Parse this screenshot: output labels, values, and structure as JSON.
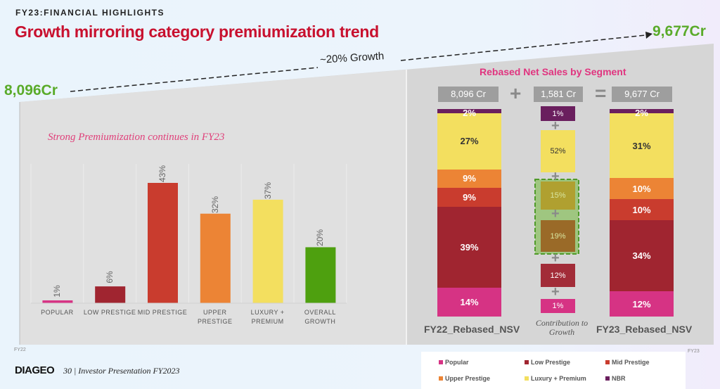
{
  "header": {
    "kicker": "FY23:FINANCIAL HIGHLIGHTS",
    "title": "Growth mirroring category premiumization trend"
  },
  "growth": {
    "start": "8,096Cr",
    "end": "9,677Cr",
    "label": "~20% Growth"
  },
  "colors": {
    "popular": "#d63384",
    "low_prestige": "#a02530",
    "mid_prestige": "#c93c2e",
    "upper_prestige": "#ec8435",
    "luxury_premium": "#f3df5f",
    "nbr": "#6a1f5e",
    "overall": "#4ea00f"
  },
  "chart_data": [
    {
      "type": "bar",
      "title": "Strong Premiumization continues in FY23",
      "categories": [
        "POPULAR",
        "LOW PRESTIGE",
        "MID PRESTIGE",
        "UPPER PRESTIGE",
        "LUXURY + PREMIUM",
        "OVERALL GROWTH"
      ],
      "values": [
        1,
        6,
        43,
        32,
        37,
        20
      ],
      "value_labels": [
        "1%",
        "6%",
        "43%",
        "32%",
        "37%",
        "20%"
      ],
      "ylim": [
        0,
        50
      ],
      "grid": "vertical separators"
    },
    {
      "type": "bar",
      "stacked": true,
      "title": "Rebased Net Sales by Segment",
      "categories": [
        "FY22_Rebased_NSV",
        "Contribution to Growth",
        "FY23_Rebased_NSV"
      ],
      "totals": [
        "8,096 Cr",
        "1,581 Cr",
        "9,677 Cr"
      ],
      "operators": [
        "+",
        "="
      ],
      "series": [
        {
          "name": "Popular",
          "values": [
            14,
            1,
            12
          ]
        },
        {
          "name": "Low Prestige",
          "values": [
            39,
            12,
            34
          ]
        },
        {
          "name": "Mid Prestige",
          "values": [
            9,
            19,
            10
          ]
        },
        {
          "name": "Upper Prestige",
          "values": [
            9,
            15,
            10
          ]
        },
        {
          "name": "Luxury + Premium",
          "values": [
            27,
            52,
            31
          ]
        },
        {
          "name": "NBR",
          "values": [
            2,
            1,
            2
          ]
        }
      ],
      "legend": "bottom"
    }
  ],
  "axis_notes": {
    "left": "FY22",
    "right": "FY23"
  },
  "footer": {
    "logo": "DIAGEO",
    "page": "30  |  Investor Presentation FY2023"
  }
}
